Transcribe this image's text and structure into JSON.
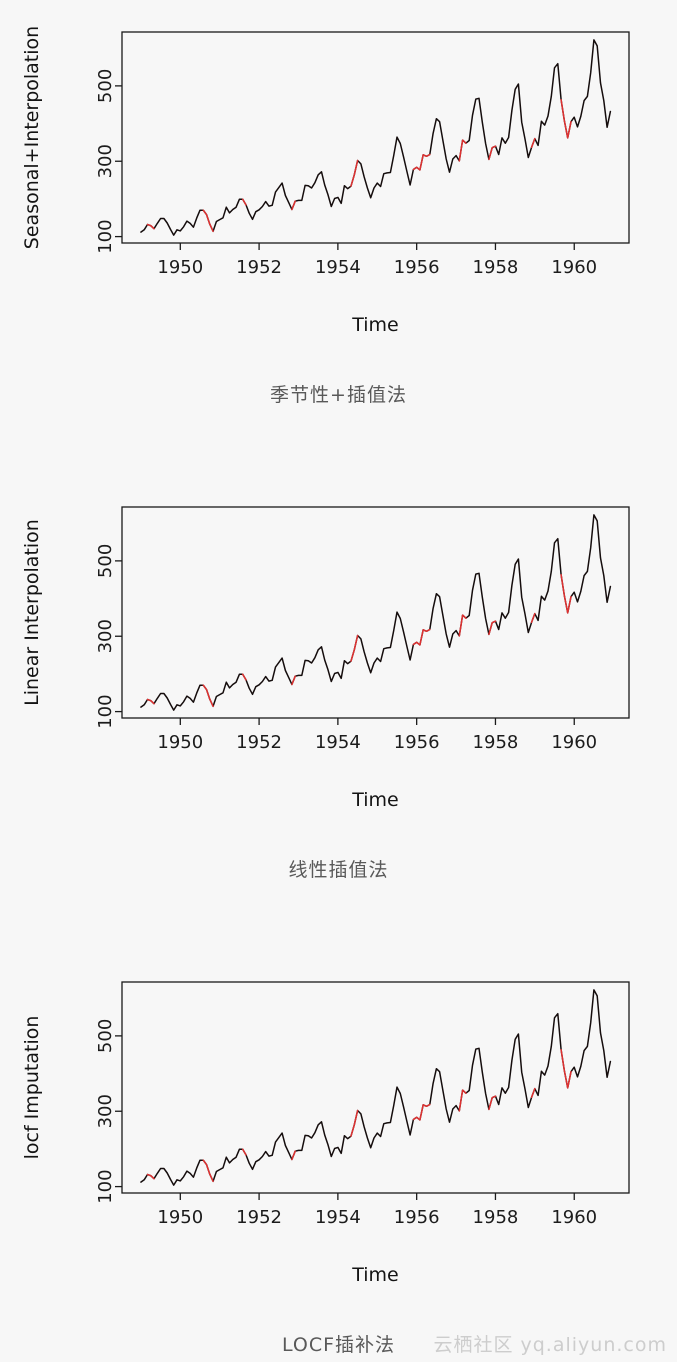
{
  "page": {
    "background": "#f7f7f7",
    "watermark": "云栖社区 yq.aliyun.com"
  },
  "chart_data": [
    {
      "type": "line",
      "ylabel": "Seasonal+Interpolation",
      "xlabel": "Time",
      "caption": "季节性+插值法",
      "x_start": 1949,
      "frequency": 12,
      "x_ticks": [
        1950,
        1952,
        1954,
        1956,
        1958,
        1960
      ],
      "y_ticks": [
        100,
        300,
        500
      ],
      "xlim": [
        1948.52,
        1961.39
      ],
      "ylim": [
        83,
        643
      ],
      "line_color": "#150d0d",
      "imputed_color": "#e03131",
      "values": [
        112,
        118,
        132,
        129,
        121,
        135,
        148,
        148,
        136,
        119,
        104,
        118,
        115,
        126,
        141,
        135,
        125,
        149,
        170,
        170,
        158,
        133,
        114,
        140,
        145,
        150,
        178,
        163,
        172,
        178,
        199,
        199,
        184,
        162,
        146,
        166,
        171,
        180,
        193,
        181,
        183,
        218,
        230,
        242,
        209,
        191,
        172,
        194,
        196,
        196,
        236,
        235,
        229,
        243,
        264,
        272,
        237,
        211,
        180,
        201,
        204,
        188,
        235,
        227,
        234,
        264,
        302,
        293,
        259,
        229,
        203,
        229,
        242,
        233,
        267,
        269,
        270,
        315,
        364,
        347,
        312,
        274,
        237,
        278,
        284,
        277,
        317,
        313,
        318,
        374,
        413,
        405,
        355,
        306,
        271,
        306,
        315,
        301,
        356,
        348,
        355,
        422,
        465,
        467,
        404,
        347,
        305,
        336,
        340,
        318,
        362,
        348,
        363,
        435,
        491,
        505,
        404,
        359,
        310,
        337,
        360,
        342,
        406,
        396,
        420,
        472,
        548,
        559,
        463,
        407,
        362,
        405,
        417,
        391,
        419,
        461,
        472,
        535,
        622,
        606,
        508,
        461,
        390,
        432
      ],
      "imputed_ranges": [
        [
          2,
          4
        ],
        [
          19,
          22
        ],
        [
          31,
          32
        ],
        [
          46,
          47
        ],
        [
          64,
          66
        ],
        [
          83,
          88
        ],
        [
          97,
          99
        ],
        [
          106,
          108
        ],
        [
          119,
          120
        ],
        [
          128,
          131
        ]
      ]
    },
    {
      "type": "line",
      "ylabel": "Linear Interpolation",
      "xlabel": "Time",
      "caption": "线性插值法",
      "x_start": 1949,
      "frequency": 12,
      "x_ticks": [
        1950,
        1952,
        1954,
        1956,
        1958,
        1960
      ],
      "y_ticks": [
        100,
        300,
        500
      ],
      "xlim": [
        1948.52,
        1961.39
      ],
      "ylim": [
        83,
        643
      ],
      "line_color": "#150d0d",
      "imputed_color": "#e03131",
      "values": [
        112,
        118,
        132,
        129,
        121,
        135,
        148,
        148,
        136,
        119,
        104,
        118,
        115,
        126,
        141,
        135,
        125,
        149,
        170,
        170,
        158,
        133,
        114,
        140,
        145,
        150,
        178,
        163,
        172,
        178,
        199,
        199,
        184,
        162,
        146,
        166,
        171,
        180,
        193,
        181,
        183,
        218,
        230,
        242,
        209,
        191,
        172,
        194,
        196,
        196,
        236,
        235,
        229,
        243,
        264,
        272,
        237,
        211,
        180,
        201,
        204,
        188,
        235,
        227,
        234,
        264,
        302,
        293,
        259,
        229,
        203,
        229,
        242,
        233,
        267,
        269,
        270,
        315,
        364,
        347,
        312,
        274,
        237,
        278,
        284,
        277,
        317,
        313,
        318,
        374,
        413,
        405,
        355,
        306,
        271,
        306,
        315,
        301,
        356,
        348,
        355,
        422,
        465,
        467,
        404,
        347,
        305,
        336,
        340,
        318,
        362,
        348,
        363,
        435,
        491,
        505,
        404,
        359,
        310,
        337,
        360,
        342,
        406,
        396,
        420,
        472,
        548,
        559,
        463,
        407,
        362,
        405,
        417,
        391,
        419,
        461,
        472,
        535,
        622,
        606,
        508,
        461,
        390,
        432
      ],
      "imputed_ranges": [
        [
          2,
          4
        ],
        [
          19,
          22
        ],
        [
          31,
          32
        ],
        [
          46,
          47
        ],
        [
          64,
          66
        ],
        [
          83,
          88
        ],
        [
          97,
          99
        ],
        [
          106,
          108
        ],
        [
          119,
          120
        ],
        [
          128,
          131
        ]
      ]
    },
    {
      "type": "line",
      "ylabel": "locf Imputation",
      "xlabel": "Time",
      "caption": "LOCF插补法",
      "x_start": 1949,
      "frequency": 12,
      "x_ticks": [
        1950,
        1952,
        1954,
        1956,
        1958,
        1960
      ],
      "y_ticks": [
        100,
        300,
        500
      ],
      "xlim": [
        1948.52,
        1961.39
      ],
      "ylim": [
        83,
        643
      ],
      "line_color": "#150d0d",
      "imputed_color": "#e03131",
      "values": [
        112,
        118,
        132,
        129,
        121,
        135,
        148,
        148,
        136,
        119,
        104,
        118,
        115,
        126,
        141,
        135,
        125,
        149,
        170,
        170,
        158,
        133,
        114,
        140,
        145,
        150,
        178,
        163,
        172,
        178,
        199,
        199,
        184,
        162,
        146,
        166,
        171,
        180,
        193,
        181,
        183,
        218,
        230,
        242,
        209,
        191,
        172,
        194,
        196,
        196,
        236,
        235,
        229,
        243,
        264,
        272,
        237,
        211,
        180,
        201,
        204,
        188,
        235,
        227,
        234,
        264,
        302,
        293,
        259,
        229,
        203,
        229,
        242,
        233,
        267,
        269,
        270,
        315,
        364,
        347,
        312,
        274,
        237,
        278,
        284,
        277,
        317,
        313,
        318,
        374,
        413,
        405,
        355,
        306,
        271,
        306,
        315,
        301,
        356,
        348,
        355,
        422,
        465,
        467,
        404,
        347,
        305,
        336,
        340,
        318,
        362,
        348,
        363,
        435,
        491,
        505,
        404,
        359,
        310,
        337,
        360,
        342,
        406,
        396,
        420,
        472,
        548,
        559,
        463,
        407,
        362,
        405,
        417,
        391,
        419,
        461,
        472,
        535,
        622,
        606,
        508,
        461,
        390,
        432
      ],
      "imputed_ranges": [
        [
          2,
          4
        ],
        [
          19,
          22
        ],
        [
          31,
          32
        ],
        [
          46,
          47
        ],
        [
          64,
          66
        ],
        [
          83,
          88
        ],
        [
          97,
          99
        ],
        [
          106,
          108
        ],
        [
          119,
          120
        ],
        [
          128,
          131
        ]
      ]
    }
  ]
}
